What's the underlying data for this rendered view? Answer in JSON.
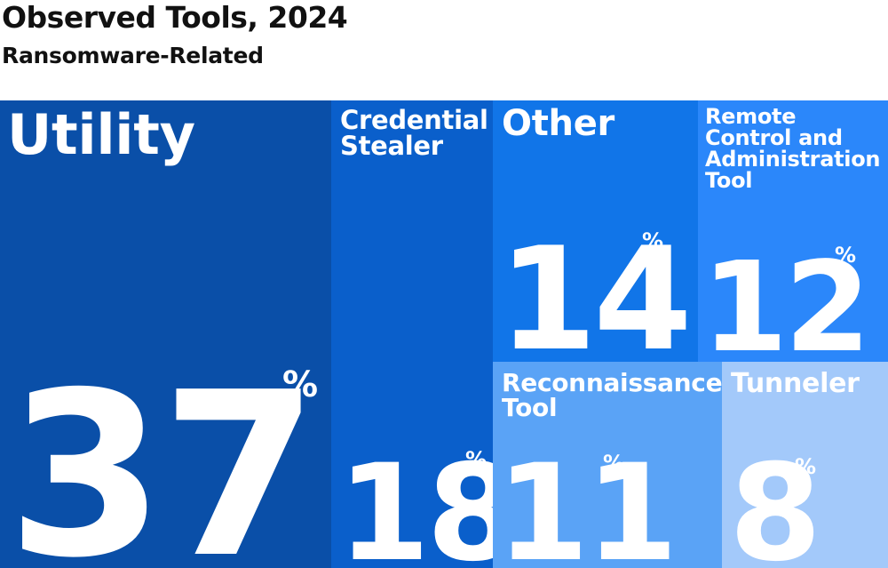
{
  "title": "Observed Tools, 2024",
  "subtitle": "Ransomware-Related",
  "chart_data": {
    "type": "treemap",
    "unit": "%",
    "items": [
      {
        "key": "utility",
        "label": "Utility",
        "value": 37,
        "color": "#0a4fa8"
      },
      {
        "key": "credential",
        "label": "Credential Stealer",
        "value": 18,
        "color": "#0a5fcb"
      },
      {
        "key": "other",
        "label": "Other",
        "value": 14,
        "color": "#1175e8"
      },
      {
        "key": "remote",
        "label": "Remote Control and Administration Tool",
        "value": 12,
        "color": "#2b87fa"
      },
      {
        "key": "recon",
        "label": "Reconnaissance Tool",
        "value": 11,
        "color": "#5aa3f6"
      },
      {
        "key": "tunneler",
        "label": "Tunneler",
        "value": 8,
        "color": "#a3c9fa"
      }
    ]
  }
}
